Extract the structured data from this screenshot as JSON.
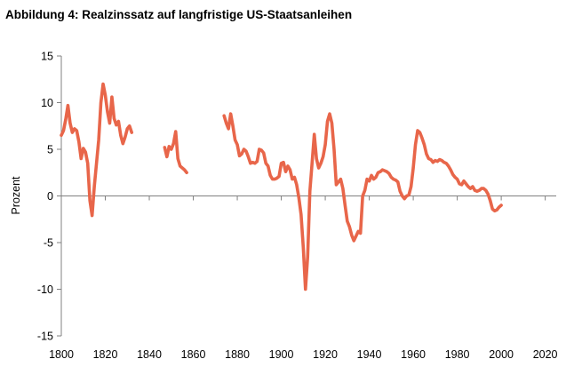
{
  "figure": {
    "title": "Abbildung 4: Realzinssatz auf langfristige US-Staatsanleihen"
  },
  "colors": {
    "line": "#e8664a",
    "axis": "#808080",
    "text": "#000000"
  },
  "chart_data": {
    "type": "line",
    "title": "Abbildung 4: Realzinssatz auf langfristige US-Staatsanleihen",
    "xlabel": "",
    "ylabel": "Prozent",
    "xlim": [
      1800,
      2025
    ],
    "ylim": [
      -15,
      15
    ],
    "xticks": [
      1800,
      1820,
      1840,
      1860,
      1880,
      1900,
      1920,
      1940,
      1960,
      1980,
      2000,
      2020
    ],
    "yticks": [
      15,
      10,
      5,
      0,
      -5,
      -10,
      -15
    ],
    "grid": false,
    "legend": "none",
    "series": [
      {
        "segments": [
          [
            [
              1800,
              6.5
            ],
            [
              1801,
              7.0
            ],
            [
              1802,
              8.2
            ],
            [
              1803,
              9.7
            ],
            [
              1804,
              7.8
            ],
            [
              1805,
              6.8
            ],
            [
              1806,
              7.2
            ],
            [
              1807,
              7.0
            ],
            [
              1808,
              5.8
            ],
            [
              1809,
              4.0
            ],
            [
              1810,
              5.1
            ],
            [
              1811,
              4.7
            ],
            [
              1812,
              3.5
            ],
            [
              1813,
              -0.5
            ],
            [
              1814,
              -2.1
            ],
            [
              1815,
              1.0
            ],
            [
              1816,
              3.5
            ],
            [
              1817,
              6.0
            ],
            [
              1818,
              10.0
            ],
            [
              1819,
              12.0
            ],
            [
              1820,
              10.8
            ],
            [
              1821,
              9.0
            ],
            [
              1822,
              7.8
            ],
            [
              1823,
              10.6
            ],
            [
              1824,
              8.3
            ],
            [
              1825,
              7.6
            ],
            [
              1826,
              8.0
            ],
            [
              1827,
              6.5
            ],
            [
              1828,
              5.6
            ],
            [
              1829,
              6.3
            ],
            [
              1830,
              7.2
            ],
            [
              1831,
              7.5
            ],
            [
              1832,
              6.8
            ]
          ],
          [
            [
              1847,
              5.2
            ],
            [
              1848,
              4.2
            ],
            [
              1849,
              5.3
            ],
            [
              1850,
              5.0
            ],
            [
              1851,
              5.6
            ],
            [
              1852,
              6.9
            ],
            [
              1853,
              4.0
            ],
            [
              1854,
              3.2
            ],
            [
              1855,
              3.0
            ],
            [
              1856,
              2.8
            ],
            [
              1857,
              2.5
            ]
          ],
          [
            [
              1874,
              8.6
            ],
            [
              1875,
              7.8
            ],
            [
              1876,
              7.2
            ],
            [
              1877,
              8.8
            ],
            [
              1878,
              7.5
            ],
            [
              1879,
              6.0
            ],
            [
              1880,
              5.5
            ],
            [
              1881,
              4.3
            ],
            [
              1882,
              4.5
            ],
            [
              1883,
              5.0
            ],
            [
              1884,
              4.8
            ],
            [
              1885,
              4.2
            ],
            [
              1886,
              3.5
            ],
            [
              1887,
              3.6
            ],
            [
              1888,
              3.5
            ],
            [
              1889,
              3.7
            ],
            [
              1890,
              5.0
            ],
            [
              1891,
              4.9
            ],
            [
              1892,
              4.6
            ],
            [
              1893,
              3.5
            ],
            [
              1894,
              3.2
            ],
            [
              1895,
              2.2
            ],
            [
              1896,
              1.8
            ],
            [
              1897,
              1.8
            ],
            [
              1898,
              1.9
            ],
            [
              1899,
              2.1
            ],
            [
              1900,
              3.5
            ],
            [
              1901,
              3.6
            ],
            [
              1902,
              2.6
            ],
            [
              1903,
              3.2
            ],
            [
              1904,
              2.8
            ],
            [
              1905,
              1.8
            ],
            [
              1906,
              2.0
            ],
            [
              1907,
              1.2
            ],
            [
              1908,
              -0.2
            ],
            [
              1909,
              -2.0
            ],
            [
              1910,
              -5.5
            ],
            [
              1911,
              -10.0
            ],
            [
              1912,
              -6.5
            ],
            [
              1913,
              0.5
            ],
            [
              1914,
              3.5
            ],
            [
              1915,
              6.6
            ],
            [
              1916,
              4.0
            ],
            [
              1917,
              3.0
            ],
            [
              1918,
              3.5
            ],
            [
              1919,
              4.2
            ],
            [
              1920,
              5.5
            ],
            [
              1921,
              8.0
            ],
            [
              1922,
              8.8
            ],
            [
              1923,
              7.8
            ],
            [
              1924,
              5.0
            ],
            [
              1925,
              1.2
            ],
            [
              1926,
              1.5
            ],
            [
              1927,
              1.8
            ],
            [
              1928,
              0.8
            ],
            [
              1929,
              -1.0
            ],
            [
              1930,
              -2.7
            ],
            [
              1931,
              -3.3
            ],
            [
              1932,
              -4.2
            ],
            [
              1933,
              -4.8
            ],
            [
              1934,
              -4.3
            ],
            [
              1935,
              -3.8
            ],
            [
              1936,
              -4.0
            ],
            [
              1937,
              0.0
            ],
            [
              1938,
              0.6
            ],
            [
              1939,
              1.8
            ],
            [
              1940,
              1.6
            ],
            [
              1941,
              2.2
            ],
            [
              1942,
              1.8
            ],
            [
              1943,
              2.0
            ],
            [
              1944,
              2.5
            ],
            [
              1945,
              2.6
            ],
            [
              1946,
              2.8
            ],
            [
              1947,
              2.7
            ],
            [
              1948,
              2.6
            ],
            [
              1949,
              2.4
            ],
            [
              1950,
              2.0
            ],
            [
              1951,
              1.8
            ],
            [
              1952,
              1.7
            ],
            [
              1953,
              1.5
            ],
            [
              1954,
              0.5
            ],
            [
              1955,
              0.0
            ],
            [
              1956,
              -0.3
            ],
            [
              1957,
              0.0
            ],
            [
              1958,
              0.1
            ],
            [
              1959,
              1.0
            ],
            [
              1960,
              3.0
            ],
            [
              1961,
              5.5
            ],
            [
              1962,
              7.0
            ],
            [
              1963,
              6.8
            ],
            [
              1964,
              6.2
            ],
            [
              1965,
              5.5
            ],
            [
              1966,
              4.5
            ],
            [
              1967,
              4.0
            ],
            [
              1968,
              3.9
            ],
            [
              1969,
              3.6
            ],
            [
              1970,
              3.8
            ],
            [
              1971,
              3.7
            ],
            [
              1972,
              3.9
            ],
            [
              1973,
              3.8
            ],
            [
              1974,
              3.6
            ],
            [
              1975,
              3.5
            ],
            [
              1976,
              3.2
            ],
            [
              1977,
              2.8
            ],
            [
              1978,
              2.3
            ],
            [
              1979,
              2.0
            ],
            [
              1980,
              1.8
            ],
            [
              1981,
              1.3
            ],
            [
              1982,
              1.2
            ],
            [
              1983,
              1.6
            ],
            [
              1984,
              1.3
            ],
            [
              1985,
              1.0
            ],
            [
              1986,
              0.8
            ],
            [
              1987,
              1.0
            ],
            [
              1988,
              0.6
            ],
            [
              1989,
              0.5
            ],
            [
              1990,
              0.6
            ],
            [
              1991,
              0.8
            ],
            [
              1992,
              0.8
            ],
            [
              1993,
              0.6
            ],
            [
              1994,
              0.2
            ],
            [
              1995,
              -0.5
            ],
            [
              1996,
              -1.4
            ],
            [
              1997,
              -1.6
            ],
            [
              1998,
              -1.5
            ],
            [
              1999,
              -1.2
            ],
            [
              2000,
              -1.0
            ]
          ]
        ]
      }
    ]
  }
}
